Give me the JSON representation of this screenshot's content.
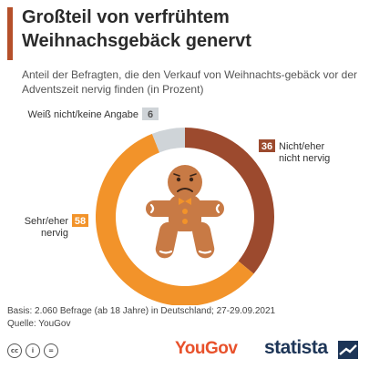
{
  "header": {
    "title": "Großteil von verfrühtem Weihnachsgebäck genervt",
    "subtitle": "Anteil der Befragten, die den Verkauf von Weihnachts-gebäck vor der Adventszeit nervig finden (in Prozent)"
  },
  "chart_data": {
    "type": "pie",
    "style": "donut",
    "series": [
      {
        "name": "Nicht/eher nicht nervig",
        "label_lines": [
          "Nicht/eher",
          "nicht nervig"
        ],
        "value": 36,
        "color": "#9c4a2e"
      },
      {
        "name": "Sehr/eher nervig",
        "label_lines": [
          "Sehr/eher",
          "nervig"
        ],
        "value": 58,
        "color": "#f2932a"
      },
      {
        "name": "Weiß nicht/keine Angabe",
        "label_lines": [
          "Weiß nicht/keine Angabe"
        ],
        "value": 6,
        "color": "#cfd4d8"
      }
    ],
    "center_icon": "sad-gingerbread-man-icon"
  },
  "footer": {
    "basis": "Basis: 2.060 Befrage (ab 18 Jahre) in Deutschland; 27-29.09.2021",
    "source": "Quelle: YouGov"
  },
  "logos": {
    "yougov": "YouGov",
    "statista": "statista",
    "cc_icons": [
      "cc",
      "i",
      "="
    ]
  }
}
